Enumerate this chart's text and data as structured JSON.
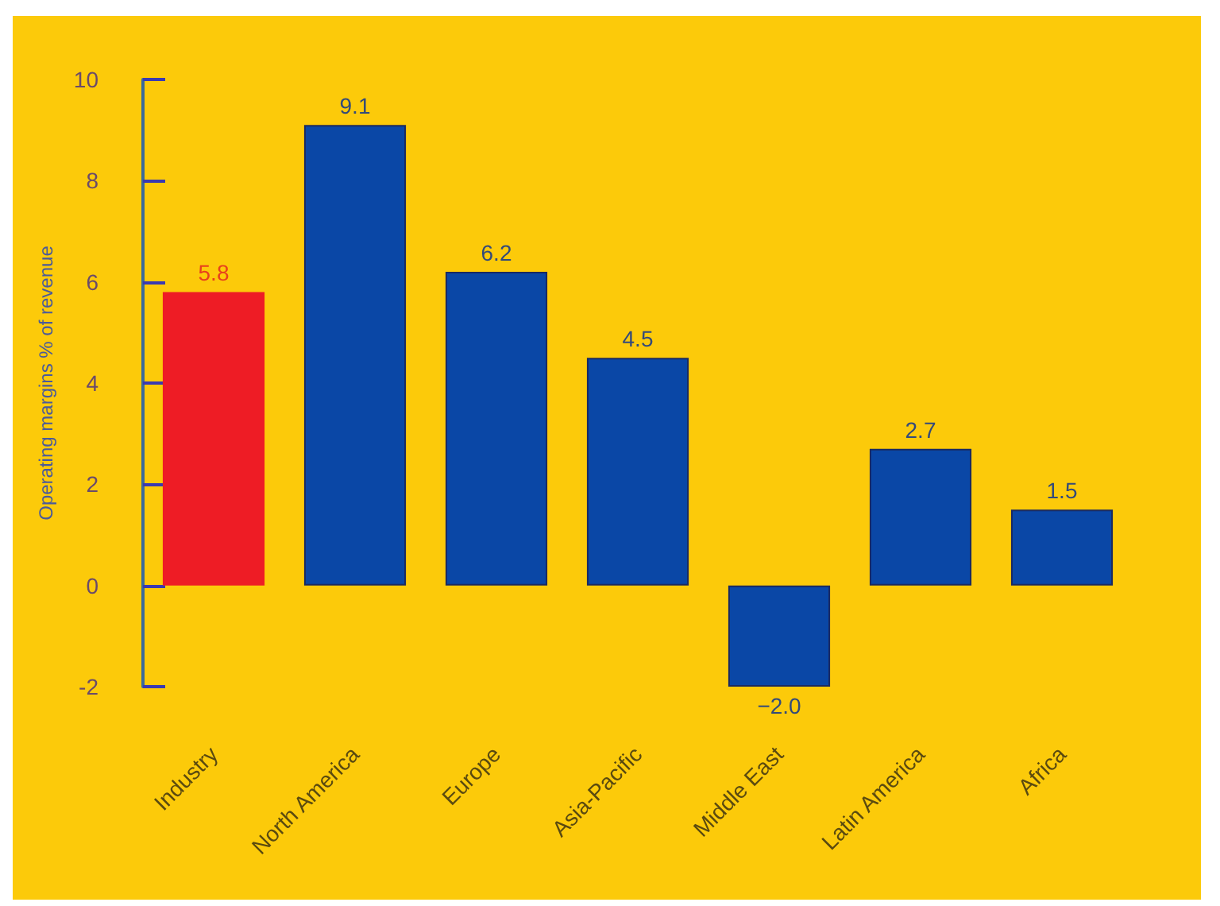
{
  "chart_data": {
    "type": "bar",
    "ylabel": "Operating margins % of revenue",
    "categories": [
      "Industry",
      "North America",
      "Europe",
      "Asia-Pacific",
      "Middle East",
      "Latin America",
      "Africa"
    ],
    "values": [
      5.8,
      9.1,
      6.2,
      4.5,
      -2.0,
      2.7,
      1.5
    ],
    "colors": [
      "#ee1c25",
      "#0a47a6",
      "#0a47a6",
      "#0a47a6",
      "#0a47a6",
      "#0a47a6",
      "#0a47a6"
    ],
    "value_labels": [
      "5.8",
      "9.1",
      "6.2",
      "4.5",
      "−2.0",
      "2.7",
      "1.5"
    ],
    "ylim": [
      -2,
      10
    ],
    "yticks": [
      -2,
      0,
      2,
      4,
      6,
      8,
      10
    ],
    "grid": false
  }
}
